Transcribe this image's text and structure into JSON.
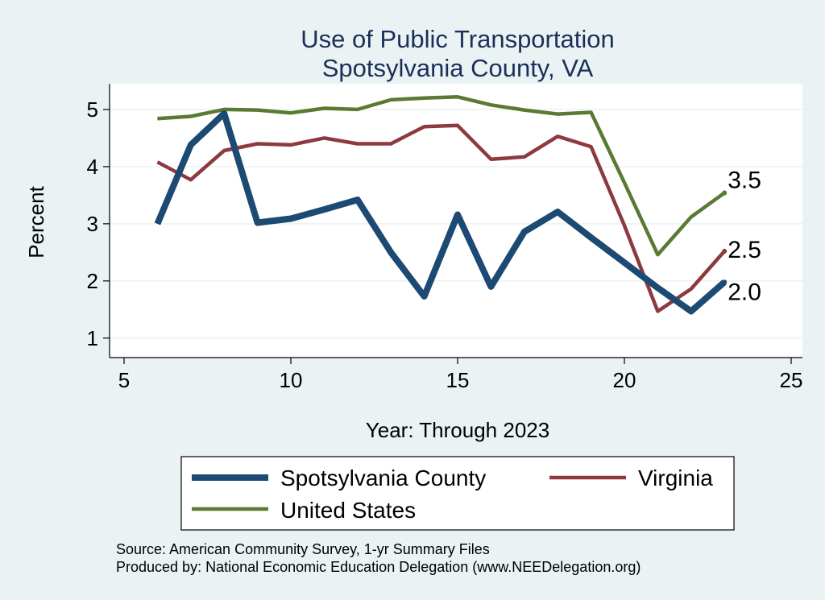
{
  "chart_data": {
    "type": "line",
    "title": "Use of Public Transportation",
    "subtitle": "Spotsylvania County, VA",
    "xlabel": "Year: Through 2023",
    "ylabel": "Percent",
    "xlim": [
      5,
      25
    ],
    "ylim": [
      0.8,
      5.45
    ],
    "x_ticks": [
      5,
      10,
      15,
      20,
      25
    ],
    "y_ticks": [
      1,
      2,
      3,
      4,
      5
    ],
    "grid": true,
    "legend_position": "bottom",
    "x": [
      6,
      7,
      8,
      9,
      10,
      11,
      12,
      13,
      14,
      15,
      16,
      17,
      18,
      19,
      20,
      21,
      22,
      23
    ],
    "series": [
      {
        "name": "Spotsylvania County",
        "color": "#1c4a72",
        "values": [
          3.0,
          4.38,
          4.93,
          3.02,
          3.09,
          3.25,
          3.42,
          2.5,
          1.73,
          3.16,
          1.9,
          2.86,
          3.21,
          2.76,
          2.32,
          1.88,
          1.47,
          1.98
        ],
        "end_label": "2.0"
      },
      {
        "name": "Virginia",
        "color": "#8c3a3f",
        "values": [
          4.08,
          3.77,
          4.28,
          4.4,
          4.38,
          4.5,
          4.4,
          4.4,
          4.7,
          4.72,
          4.13,
          4.17,
          4.53,
          4.35,
          2.97,
          1.47,
          1.86,
          2.52
        ],
        "end_label": "2.5"
      },
      {
        "name": "United States",
        "color": "#5a7a32",
        "values": [
          4.84,
          4.88,
          5.0,
          4.99,
          4.94,
          5.02,
          5.0,
          5.17,
          5.2,
          5.22,
          5.08,
          4.99,
          4.92,
          4.95,
          3.72,
          2.46,
          3.12,
          3.54
        ],
        "end_label": "3.5"
      }
    ]
  },
  "notes": {
    "source": "Source: American Community Survey, 1-yr Summary Files",
    "produced_by": "Produced by: National Economic Education Delegation (www.NEEDelegation.org)"
  }
}
